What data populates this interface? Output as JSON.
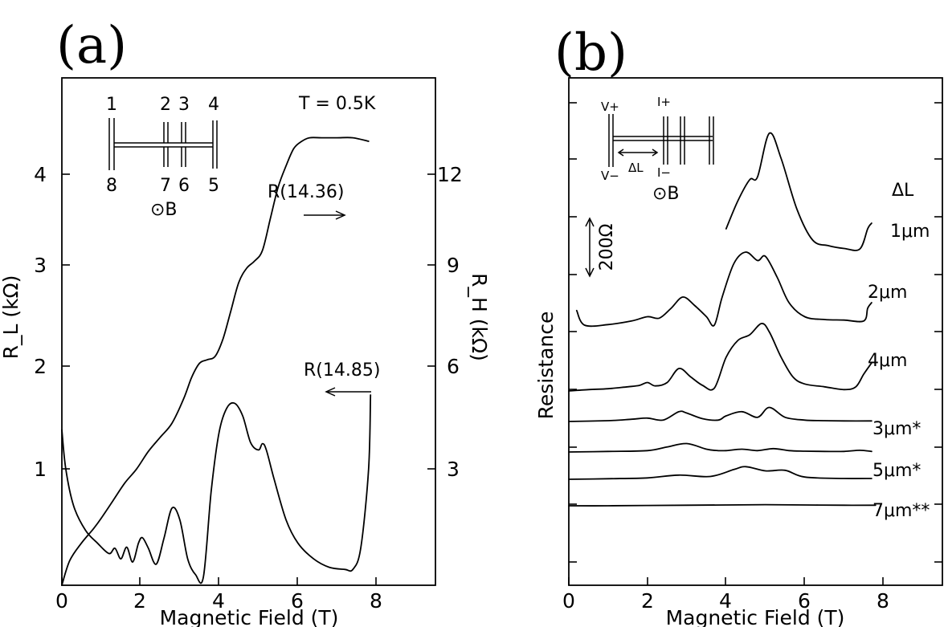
{
  "chart_data": [
    {
      "type": "line",
      "panel_label": "(a)",
      "xlabel": "Magnetic Field (T)",
      "ylabel_left": "R_L (kΩ)",
      "ylabel_right": "R_H (kΩ)",
      "xlim": [
        0,
        9.5
      ],
      "ylim_left": [
        0,
        4.8
      ],
      "ylim_right": [
        0,
        14.4
      ],
      "x_ticks": [
        0,
        2,
        4,
        6,
        8
      ],
      "y_ticks_left": [
        1,
        2,
        3,
        4
      ],
      "y_ticks_right": [
        3,
        6,
        9,
        12
      ],
      "annotations": {
        "temperature": "T = 0.5K",
        "field_direction": "⊙B",
        "contacts_top": [
          "1",
          "2",
          "3",
          "4"
        ],
        "contacts_bottom": [
          "8",
          "7",
          "6",
          "5"
        ]
      },
      "series": [
        {
          "name": "R(14.36)",
          "axis": "right",
          "arrow": "right",
          "x": [
            0,
            0.2,
            0.5,
            0.8,
            1.0,
            1.3,
            1.6,
            1.9,
            2.2,
            2.5,
            2.8,
            3.1,
            3.3,
            3.5,
            3.7,
            3.9,
            4.1,
            4.3,
            4.5,
            4.7,
            4.9,
            5.1,
            5.3,
            5.5,
            5.7,
            5.9,
            6.1,
            6.3,
            6.6,
            7.0,
            7.4,
            7.8
          ],
          "y": [
            0,
            0.7,
            1.2,
            1.6,
            1.9,
            2.4,
            2.9,
            3.3,
            3.8,
            4.2,
            4.6,
            5.3,
            5.9,
            6.3,
            6.4,
            6.5,
            7.0,
            7.8,
            8.6,
            9.0,
            9.2,
            9.5,
            10.4,
            11.3,
            11.9,
            12.4,
            12.6,
            12.7,
            12.7,
            12.7,
            12.7,
            12.6
          ]
        },
        {
          "name": "R(14.85)",
          "axis": "left",
          "arrow": "left",
          "x": [
            0,
            0.1,
            0.3,
            0.6,
            0.9,
            1.2,
            1.35,
            1.5,
            1.65,
            1.8,
            1.95,
            2.05,
            2.2,
            2.4,
            2.6,
            2.8,
            3.0,
            3.2,
            3.4,
            3.6,
            3.8,
            4.0,
            4.2,
            4.4,
            4.6,
            4.8,
            5.0,
            5.1,
            5.2,
            5.4,
            5.7,
            6.0,
            6.4,
            6.8,
            7.2,
            7.4,
            7.6,
            7.8,
            7.85
          ],
          "y": [
            1.47,
            1.1,
            0.75,
            0.52,
            0.4,
            0.3,
            0.35,
            0.25,
            0.36,
            0.22,
            0.4,
            0.45,
            0.35,
            0.2,
            0.45,
            0.73,
            0.62,
            0.25,
            0.1,
            0.08,
            0.9,
            1.45,
            1.68,
            1.72,
            1.6,
            1.35,
            1.28,
            1.34,
            1.28,
            1.0,
            0.62,
            0.4,
            0.25,
            0.17,
            0.15,
            0.15,
            0.35,
            1.1,
            1.8
          ]
        }
      ]
    },
    {
      "type": "line",
      "panel_label": "(b)",
      "xlabel": "Magnetic Field (T)",
      "ylabel": "Resistance",
      "xlim": [
        0,
        9.5
      ],
      "x_ticks": [
        0,
        2,
        4,
        6,
        8
      ],
      "scale_bar": "200Ω",
      "legend_title": "ΔL",
      "annotations": {
        "inset_labels": [
          "V+",
          "I+",
          "V−",
          "I−",
          "ΔL"
        ],
        "field_direction": "⊙B"
      },
      "series": [
        {
          "name": "1μm",
          "x": [
            4.0,
            4.3,
            4.6,
            4.8,
            5.1,
            5.4,
            5.8,
            6.2,
            6.6,
            7.0,
            7.4,
            7.6,
            7.7
          ],
          "y": [
            200,
            300,
            375,
            385,
            540,
            450,
            270,
            160,
            140,
            130,
            128,
            200,
            220
          ]
        },
        {
          "name": "2μm",
          "x": [
            0.2,
            0.4,
            1.0,
            1.6,
            2.0,
            2.3,
            2.6,
            2.9,
            3.2,
            3.5,
            3.7,
            3.9,
            4.2,
            4.5,
            4.8,
            5.0,
            5.3,
            5.6,
            6.0,
            6.5,
            7.0,
            7.5,
            7.6,
            7.7
          ],
          "y": [
            52,
            0,
            2,
            15,
            30,
            25,
            60,
            100,
            70,
            30,
            0,
            100,
            220,
            260,
            230,
            245,
            170,
            80,
            30,
            20,
            18,
            15,
            60,
            80
          ]
        },
        {
          "name": "4μm",
          "x": [
            0,
            0.5,
            1.0,
            1.5,
            1.8,
            2.0,
            2.2,
            2.5,
            2.8,
            3.1,
            3.4,
            3.7,
            4.0,
            4.3,
            4.6,
            4.9,
            5.1,
            5.4,
            5.7,
            6.0,
            6.5,
            7.0,
            7.3,
            7.5,
            7.7
          ],
          "y": [
            0,
            5,
            8,
            15,
            20,
            30,
            18,
            30,
            80,
            50,
            20,
            10,
            120,
            180,
            200,
            240,
            210,
            120,
            50,
            25,
            15,
            5,
            15,
            60,
            100
          ]
        },
        {
          "name": "3μm*",
          "x": [
            0,
            1.0,
            1.6,
            2.0,
            2.4,
            2.8,
            3.0,
            3.4,
            3.8,
            4.0,
            4.4,
            4.8,
            5.1,
            5.5,
            6.0,
            6.5,
            7.0,
            7.7
          ],
          "y": [
            0,
            3,
            8,
            12,
            5,
            35,
            30,
            10,
            5,
            20,
            35,
            15,
            50,
            15,
            5,
            3,
            2,
            2
          ]
        },
        {
          "name": "5μm*",
          "x": [
            0,
            1.0,
            2.0,
            2.5,
            3.0,
            3.5,
            3.8,
            4.0,
            4.4,
            4.8,
            5.2,
            5.6,
            6.0,
            6.5,
            7.0,
            7.4,
            7.7
          ],
          "y": [
            0,
            2,
            5,
            18,
            30,
            10,
            5,
            5,
            10,
            5,
            12,
            5,
            3,
            2,
            2,
            6,
            2
          ]
        },
        {
          "name": "7μm**",
          "x": [
            0,
            1.0,
            2.0,
            2.8,
            3.6,
            4.2,
            4.5,
            5.0,
            5.5,
            6.0,
            7.0,
            7.7
          ],
          "y": [
            0,
            2,
            5,
            15,
            10,
            35,
            45,
            30,
            32,
            8,
            3,
            3
          ]
        },
        {
          "name": "",
          "x": [
            0,
            1.0,
            2.0,
            3.0,
            4.0,
            5.0,
            6.0,
            7.0,
            7.8
          ],
          "y": [
            0,
            0,
            1,
            2,
            3,
            4,
            3,
            2,
            2
          ]
        }
      ]
    }
  ]
}
